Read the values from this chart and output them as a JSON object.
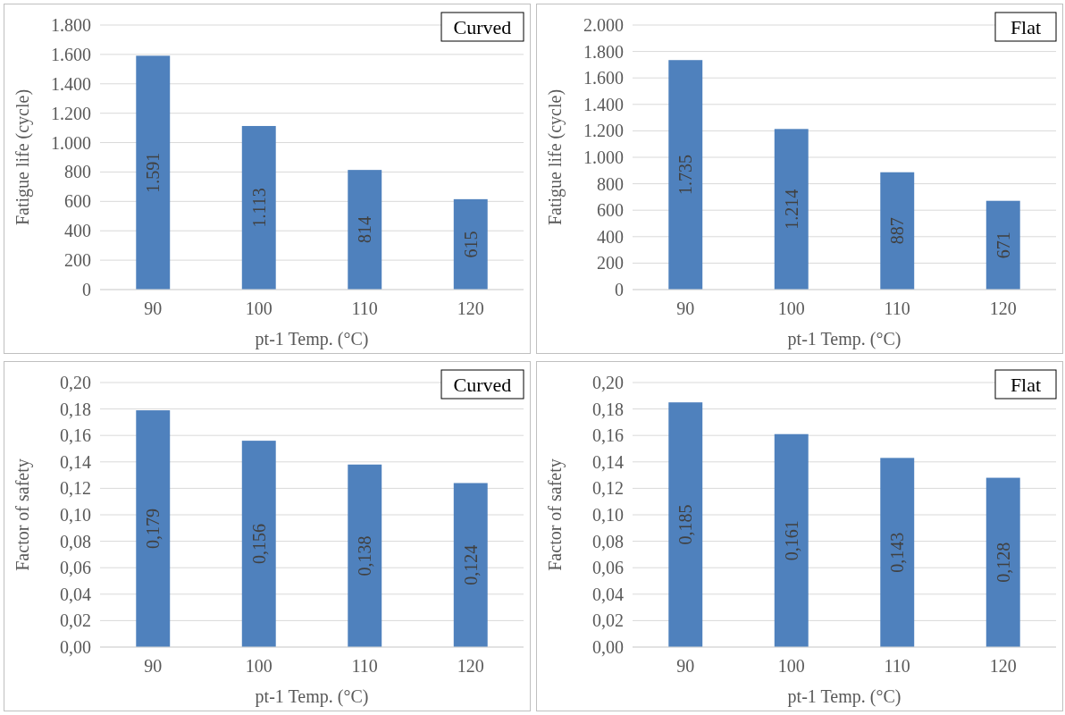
{
  "chart_data": [
    {
      "type": "bar",
      "categories": [
        "90",
        "100",
        "110",
        "120"
      ],
      "values": [
        1591,
        1113,
        814,
        615
      ],
      "value_labels": [
        "1.591",
        "1.113",
        "814",
        "615"
      ],
      "color": "#4f81bd",
      "ylim": [
        0,
        1800
      ],
      "yticks": [
        0,
        200,
        400,
        600,
        800,
        {
          "value": 1000,
          "label": "1.000"
        },
        {
          "value": 1200,
          "label": "1.200"
        },
        {
          "value": 1400,
          "label": "1.400"
        },
        {
          "value": 1600,
          "label": "1.600"
        },
        {
          "value": 1800,
          "label": "1.800"
        }
      ],
      "grid": "y",
      "xlabel": "pt-1 Temp. (°C)",
      "ylabel": "Fatigue life (cycle)",
      "annotations": [
        "Curved"
      ]
    },
    {
      "type": "bar",
      "categories": [
        "90",
        "100",
        "110",
        "120"
      ],
      "values": [
        1735,
        1214,
        887,
        671
      ],
      "value_labels": [
        "1.735",
        "1.214",
        "887",
        "671"
      ],
      "color": "#4f81bd",
      "ylim": [
        0,
        2000
      ],
      "yticks": [
        0,
        200,
        400,
        600,
        800,
        {
          "value": 1000,
          "label": "1.000"
        },
        {
          "value": 1200,
          "label": "1.200"
        },
        {
          "value": 1400,
          "label": "1.400"
        },
        {
          "value": 1600,
          "label": "1.600"
        },
        {
          "value": 1800,
          "label": "1.800"
        },
        {
          "value": 2000,
          "label": "2.000"
        }
      ],
      "grid": "y",
      "xlabel": "pt-1 Temp. (°C)",
      "ylabel": "Fatigue life (cycle)",
      "annotations": [
        "Flat"
      ]
    },
    {
      "type": "bar",
      "categories": [
        "90",
        "100",
        "110",
        "120"
      ],
      "values": [
        0.179,
        0.156,
        0.138,
        0.124
      ],
      "value_labels": [
        "0,179",
        "0,156",
        "0,138",
        "0,124"
      ],
      "color": "#4f81bd",
      "ylim": [
        0,
        0.2
      ],
      "yticks": [
        {
          "value": 0,
          "label": "0,00"
        },
        {
          "value": 0.02,
          "label": "0,02"
        },
        {
          "value": 0.04,
          "label": "0,04"
        },
        {
          "value": 0.06,
          "label": "0,06"
        },
        {
          "value": 0.08,
          "label": "0,08"
        },
        {
          "value": 0.1,
          "label": "0,10"
        },
        {
          "value": 0.12,
          "label": "0,12"
        },
        {
          "value": 0.14,
          "label": "0,14"
        },
        {
          "value": 0.16,
          "label": "0,16"
        },
        {
          "value": 0.18,
          "label": "0,18"
        },
        {
          "value": 0.2,
          "label": "0,20"
        }
      ],
      "grid": "y",
      "xlabel": "pt-1 Temp. (°C)",
      "ylabel": "Factor of safety",
      "annotations": [
        "Curved"
      ]
    },
    {
      "type": "bar",
      "categories": [
        "90",
        "100",
        "110",
        "120"
      ],
      "values": [
        0.185,
        0.161,
        0.143,
        0.128
      ],
      "value_labels": [
        "0,185",
        "0,161",
        "0,143",
        "0,128"
      ],
      "color": "#4f81bd",
      "ylim": [
        0,
        0.2
      ],
      "yticks": [
        {
          "value": 0,
          "label": "0,00"
        },
        {
          "value": 0.02,
          "label": "0,02"
        },
        {
          "value": 0.04,
          "label": "0,04"
        },
        {
          "value": 0.06,
          "label": "0,06"
        },
        {
          "value": 0.08,
          "label": "0,08"
        },
        {
          "value": 0.1,
          "label": "0,10"
        },
        {
          "value": 0.12,
          "label": "0,12"
        },
        {
          "value": 0.14,
          "label": "0,14"
        },
        {
          "value": 0.16,
          "label": "0,16"
        },
        {
          "value": 0.18,
          "label": "0,18"
        },
        {
          "value": 0.2,
          "label": "0,20"
        }
      ],
      "grid": "y",
      "xlabel": "pt-1 Temp. (°C)",
      "ylabel": "Factor of safety",
      "annotations": [
        "Flat"
      ]
    }
  ]
}
